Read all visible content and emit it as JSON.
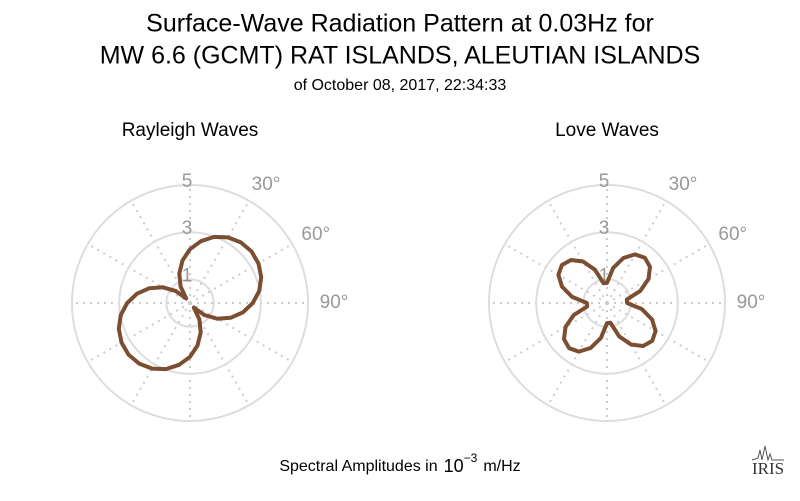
{
  "title": "Surface-Wave Radiation Pattern at 0.03Hz for",
  "title_line2": "MW 6.6 (GCMT) RAT ISLANDS, ALEUTIAN ISLANDS",
  "subtitle": "of October 08, 2017, 22:34:33",
  "caption": {
    "text": "Spectral Amplitudes in",
    "base": "10",
    "exponent": "−3",
    "unit": "m/Hz"
  },
  "logo": "IRIS",
  "chart_data": [
    {
      "type": "polar",
      "title": "Rayleigh Waves",
      "color": "#7b4e31",
      "theta": [
        0,
        10,
        20,
        30,
        40,
        50,
        60,
        70,
        80,
        90,
        100,
        110,
        120,
        130,
        140,
        150,
        160,
        170,
        180,
        190,
        200,
        210,
        220,
        230,
        240,
        250,
        260,
        270,
        280,
        290,
        300,
        310,
        320,
        330,
        340,
        350
      ],
      "values": [
        2.28,
        2.66,
        2.98,
        3.21,
        3.35,
        3.4,
        3.35,
        3.21,
        2.98,
        2.66,
        2.28,
        1.83,
        1.33,
        0.8,
        0.25,
        0.8,
        1.33,
        1.83,
        2.28,
        2.66,
        2.98,
        3.21,
        3.35,
        3.4,
        3.35,
        3.21,
        2.98,
        2.66,
        2.28,
        1.83,
        1.33,
        0.8,
        0.25,
        0.8,
        1.33,
        1.83
      ],
      "rlim": [
        0,
        5
      ],
      "rticks": [
        1,
        3,
        5
      ],
      "thetaticks": [
        {
          "value": 30,
          "label": "30°"
        },
        {
          "value": 60,
          "label": "60°"
        },
        {
          "value": 90,
          "label": "90°"
        }
      ]
    },
    {
      "type": "polar",
      "title": "Love Waves",
      "color": "#7b4e31",
      "theta": [
        0,
        10,
        20,
        30,
        40,
        50,
        60,
        70,
        80,
        90,
        100,
        110,
        120,
        130,
        140,
        150,
        160,
        170,
        180,
        190,
        200,
        210,
        220,
        230,
        240,
        250,
        260,
        270,
        280,
        290,
        300,
        310,
        320,
        330,
        340,
        350
      ],
      "values": [
        0.85,
        1.5,
        2.03,
        2.38,
        2.5,
        2.38,
        2.03,
        1.5,
        0.85,
        0.85,
        1.5,
        2.03,
        2.38,
        2.5,
        2.38,
        2.03,
        1.5,
        0.85,
        0.85,
        1.5,
        2.03,
        2.38,
        2.5,
        2.38,
        2.03,
        1.5,
        0.85,
        0.85,
        1.5,
        2.03,
        2.38,
        2.5,
        2.38,
        2.03,
        1.5,
        0.85
      ],
      "rlim": [
        0,
        5
      ],
      "rticks": [
        1,
        3,
        5
      ],
      "thetaticks": [
        {
          "value": 30,
          "label": "30°"
        },
        {
          "value": 60,
          "label": "60°"
        },
        {
          "value": 90,
          "label": "90°"
        }
      ]
    }
  ]
}
